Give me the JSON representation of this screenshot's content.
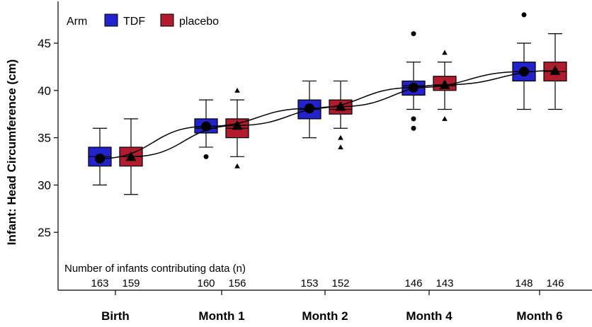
{
  "chart_data": {
    "type": "box",
    "ylabel": "Infant: Head Circumference (cm)",
    "ylim": [
      21.5,
      48.8
    ],
    "yticks": [
      25,
      30,
      35,
      40,
      45
    ],
    "categories": [
      "Birth",
      "Month 1",
      "Month 2",
      "Month 4",
      "Month 6"
    ],
    "legend": {
      "title": "Arm",
      "placement": "top-left"
    },
    "series": [
      {
        "name": "TDF",
        "color": "#2323cc",
        "marker": "circle",
        "boxes": [
          {
            "whisker_low": 30,
            "q1": 32,
            "median": 33,
            "q3": 34,
            "whisker_high": 36,
            "mean": 32.8,
            "outliers": []
          },
          {
            "whisker_low": 34,
            "q1": 35.5,
            "median": 36,
            "q3": 37,
            "whisker_high": 39,
            "mean": 36.2,
            "outliers": [
              33
            ]
          },
          {
            "whisker_low": 35,
            "q1": 37,
            "median": 38,
            "q3": 39,
            "whisker_high": 41,
            "mean": 38.1,
            "outliers": []
          },
          {
            "whisker_low": 38,
            "q1": 39.5,
            "median": 40.5,
            "q3": 41,
            "whisker_high": 43,
            "mean": 40.3,
            "outliers": [
              36,
              37,
              46
            ]
          },
          {
            "whisker_low": 38,
            "q1": 41,
            "median": 42,
            "q3": 43,
            "whisker_high": 45,
            "mean": 42.0,
            "outliers": [
              48
            ]
          }
        ],
        "n": [
          "163",
          "160",
          "153",
          "146",
          "148"
        ]
      },
      {
        "name": "placebo",
        "color": "#b01c2e",
        "marker": "triangle",
        "boxes": [
          {
            "whisker_low": 29,
            "q1": 32,
            "median": 33,
            "q3": 34,
            "whisker_high": 37,
            "mean": 33.0,
            "outliers": []
          },
          {
            "whisker_low": 33,
            "q1": 35,
            "median": 36,
            "q3": 37,
            "whisker_high": 39,
            "mean": 36.3,
            "outliers": [
              32,
              40
            ]
          },
          {
            "whisker_low": 36,
            "q1": 37.5,
            "median": 38,
            "q3": 39,
            "whisker_high": 41,
            "mean": 38.3,
            "outliers": [
              34,
              35
            ]
          },
          {
            "whisker_low": 38,
            "q1": 40,
            "median": 40.5,
            "q3": 41.5,
            "whisker_high": 43,
            "mean": 40.6,
            "outliers": [
              37,
              44
            ]
          },
          {
            "whisker_low": 38,
            "q1": 41,
            "median": 42,
            "q3": 43,
            "whisker_high": 46,
            "mean": 42.1,
            "outliers": []
          }
        ],
        "n": [
          "159",
          "156",
          "152",
          "143",
          "146"
        ]
      }
    ],
    "n_table": {
      "title": "Number of infants contributing data (n)"
    },
    "grid": false
  }
}
